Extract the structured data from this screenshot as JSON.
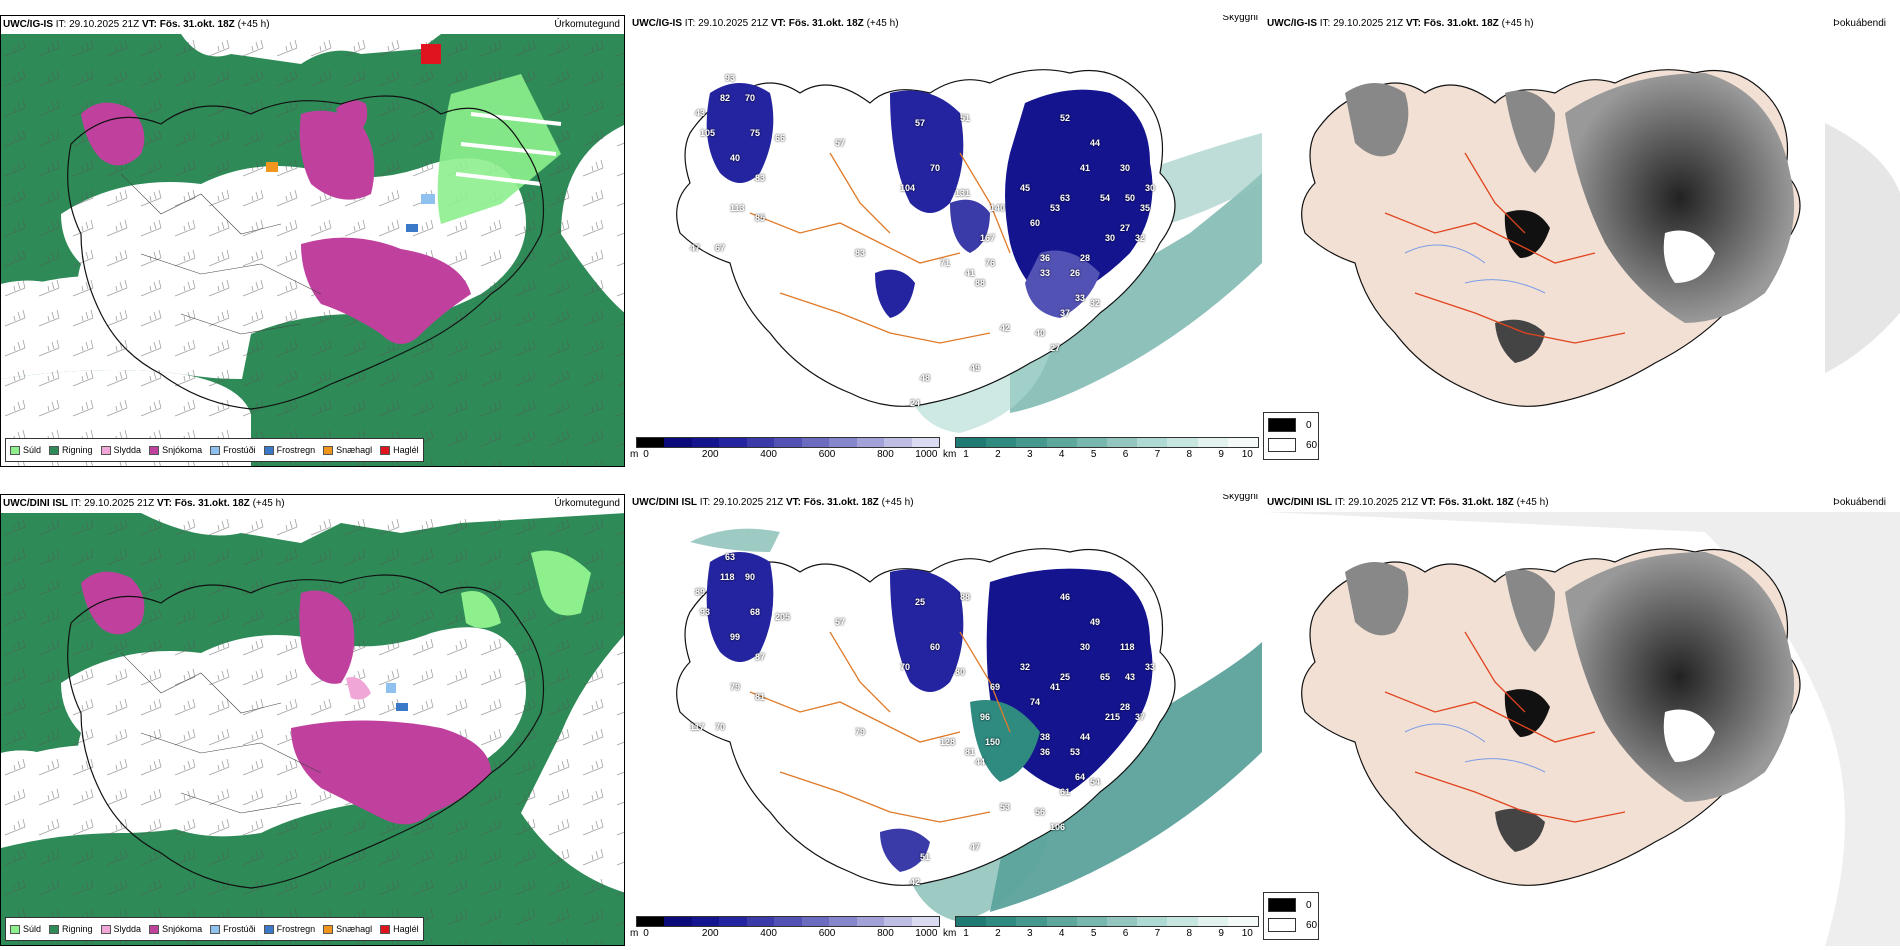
{
  "rows": [
    {
      "id": "top",
      "precip_title": {
        "model": "UWC/IG-IS",
        "it": "IT: 29.10.2025 21Z",
        "vt_label": "VT:",
        "vt": "Fös. 31.okt. 18Z",
        "lead": "(+45 h)",
        "field": "Úrkomutegund"
      },
      "vis_title": {
        "model": "UWC/IG-IS",
        "it": "IT: 29.10.2025 21Z",
        "vt_label": "VT:",
        "vt": "Fös. 31.okt. 18Z",
        "lead": "(+45 h)",
        "field": "Skyggni"
      },
      "fog_title": {
        "model": "UWC/IG-IS",
        "it": "IT: 29.10.2025 21Z",
        "vt_label": "VT:",
        "vt": "Fös. 31.okt. 18Z",
        "lead": "(+45 h)",
        "field": "Þokuábendi"
      },
      "vis_values": [
        "93",
        "82",
        "70",
        "43",
        "105",
        "75",
        "66",
        "40",
        "83",
        "113",
        "85",
        "47",
        "67",
        "83",
        "57",
        "57",
        "51",
        "104",
        "70",
        "131",
        "140",
        "167",
        "76",
        "71",
        "41",
        "88",
        "45",
        "60",
        "53",
        "36",
        "63",
        "33",
        "28",
        "26",
        "33",
        "32",
        "37",
        "27",
        "40",
        "42",
        "48",
        "49",
        "24",
        "52",
        "44",
        "41",
        "30",
        "54",
        "50",
        "30",
        "27",
        "30",
        "32",
        "35"
      ]
    },
    {
      "id": "bottom",
      "precip_title": {
        "model": "UWC/DINI ISL",
        "it": "IT: 29.10.2025 21Z",
        "vt_label": "VT:",
        "vt": "Fös. 31.okt. 18Z",
        "lead": "(+45 h)",
        "field": "Úrkomutegund"
      },
      "vis_title": {
        "model": "UWC/DINI ISL",
        "it": "IT: 29.10.2025 21Z",
        "vt_label": "VT:",
        "vt": "Fös. 31.okt. 18Z",
        "lead": "(+45 h)",
        "field": "Skyggni"
      },
      "fog_title": {
        "model": "UWC/DINI ISL",
        "it": "IT: 29.10.2025 21Z",
        "vt_label": "VT:",
        "vt": "Fös. 31.okt. 18Z",
        "lead": "(+45 h)",
        "field": "Þokuábendi"
      },
      "vis_values": [
        "63",
        "118",
        "90",
        "89",
        "93",
        "68",
        "205",
        "99",
        "87",
        "79",
        "81",
        "117",
        "70",
        "79",
        "57",
        "25",
        "88",
        "70",
        "60",
        "80",
        "69",
        "96",
        "150",
        "128",
        "81",
        "44",
        "32",
        "74",
        "41",
        "38",
        "25",
        "36",
        "44",
        "53",
        "64",
        "54",
        "61",
        "106",
        "56",
        "53",
        "51",
        "47",
        "42",
        "46",
        "49",
        "30",
        "118",
        "65",
        "43",
        "33",
        "28",
        "215",
        "37"
      ]
    }
  ],
  "precip_legend": [
    {
      "label": "Súld",
      "color": "#8df08d"
    },
    {
      "label": "Rigning",
      "color": "#2e8b57"
    },
    {
      "label": "Slydda",
      "color": "#f0a6d6"
    },
    {
      "label": "Snjókoma",
      "color": "#c0409e"
    },
    {
      "label": "Frostúði",
      "color": "#8ec1ee"
    },
    {
      "label": "Frostregn",
      "color": "#3a78c8"
    },
    {
      "label": "Snæhagl",
      "color": "#f0961e"
    },
    {
      "label": "Haglél",
      "color": "#e0141e"
    }
  ],
  "ceiling_scale": {
    "unit": "m",
    "ticks": [
      "0",
      "200",
      "400",
      "600",
      "800",
      "1000"
    ],
    "colors": [
      "#000000",
      "#0a0a7a",
      "#14148f",
      "#2424a0",
      "#3a3aa8",
      "#5252b4",
      "#6b6bc0",
      "#8686cc",
      "#a2a2d8",
      "#bebee4",
      "#dadaf0"
    ]
  },
  "visibility_scale": {
    "unit": "km",
    "ticks": [
      "1",
      "2",
      "3",
      "4",
      "5",
      "6",
      "7",
      "8",
      "9",
      "10"
    ],
    "colors": [
      "#1e7a72",
      "#2f8a80",
      "#45988e",
      "#5ea79d",
      "#78b7ad",
      "#93c6be",
      "#addad2",
      "#c8e6e0",
      "#e2f2ef",
      "#f4faf8"
    ]
  },
  "fog_legend": [
    {
      "label": "0",
      "color": "#000000"
    },
    {
      "label": "60",
      "color": "#ffffff"
    }
  ],
  "colors": {
    "rain": "#2e8b57",
    "snow": "#c0409e",
    "drizzle": "#8df08d",
    "sleet": "#f0a6d6",
    "ceiling_dark": "#14148f",
    "visibility_teal": "#2f8a80",
    "roads": "#e07a28",
    "land_fog": "#f2e0d4",
    "rivers": "#7c9ce6"
  }
}
